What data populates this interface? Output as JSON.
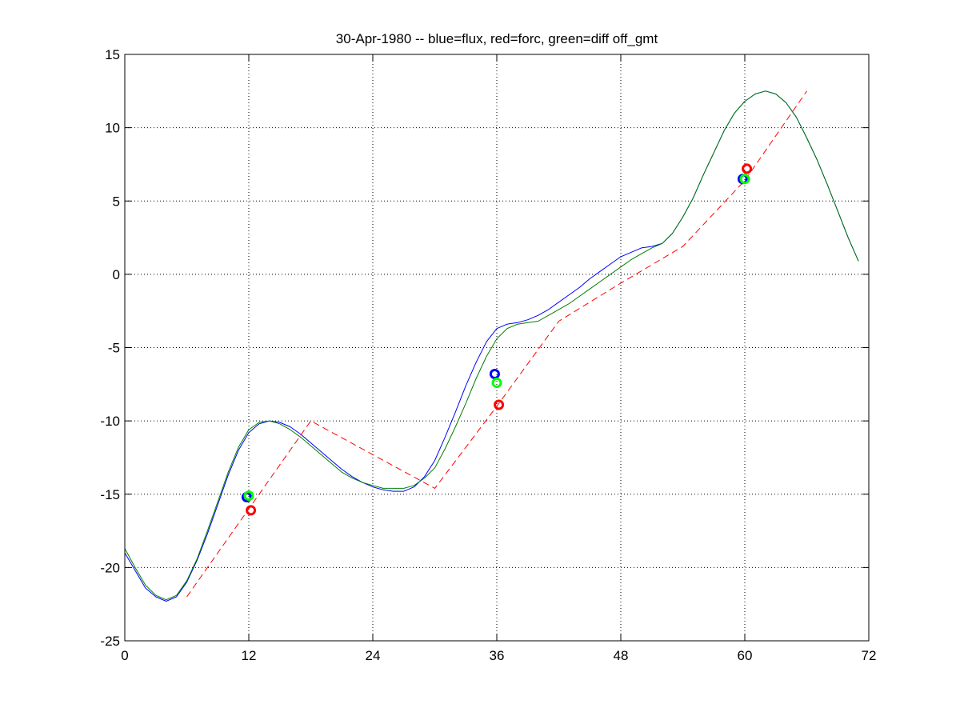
{
  "chart_data": {
    "type": "line",
    "title": "30-Apr-1980 -- blue=flux, red=forc, green=diff off_gmt",
    "xlabel": "",
    "ylabel": "",
    "xlim": [
      0,
      72
    ],
    "ylim": [
      -25,
      15
    ],
    "xticks": [
      0,
      12,
      24,
      36,
      48,
      60,
      72
    ],
    "xtick_labels": [
      "0",
      "12",
      "24",
      "36",
      "48",
      "60",
      "72"
    ],
    "yticks": [
      -25,
      -20,
      -15,
      -10,
      -5,
      0,
      5,
      10,
      15
    ],
    "ytick_labels": [
      "-25",
      "-20",
      "-15",
      "-10",
      "-5",
      "0",
      "5",
      "10",
      "15"
    ],
    "grid": true,
    "grid_style": "dotted",
    "legend": "none",
    "series": [
      {
        "color": "#0000ff",
        "style": "solid",
        "x": [
          0,
          1,
          2,
          3,
          4,
          5,
          6,
          7,
          8,
          9,
          10,
          11,
          12,
          13,
          14,
          15,
          16,
          17,
          18,
          19,
          20,
          21,
          22,
          23,
          24,
          25,
          26,
          27,
          28,
          29,
          30,
          31,
          32,
          33,
          34,
          35,
          36,
          37,
          38,
          39,
          40,
          41,
          42,
          43,
          44,
          45,
          46,
          47,
          48,
          49,
          50,
          51,
          52,
          53,
          54,
          55,
          56,
          57,
          58,
          59,
          60,
          61,
          62,
          63,
          64,
          65,
          66,
          67,
          68,
          69,
          70,
          71
        ],
        "y": [
          -19.0,
          -20.2,
          -21.4,
          -22.0,
          -22.3,
          -22.0,
          -21.0,
          -19.5,
          -17.7,
          -15.7,
          -13.7,
          -12.0,
          -10.8,
          -10.2,
          -10.0,
          -10.1,
          -10.4,
          -10.9,
          -11.5,
          -12.1,
          -12.7,
          -13.3,
          -13.8,
          -14.2,
          -14.5,
          -14.7,
          -14.8,
          -14.8,
          -14.5,
          -13.8,
          -12.7,
          -11.1,
          -9.4,
          -7.6,
          -6.0,
          -4.6,
          -3.7,
          -3.4,
          -3.3,
          -3.1,
          -2.8,
          -2.4,
          -1.9,
          -1.4,
          -0.9,
          -0.3,
          0.2,
          0.7,
          1.2,
          1.5,
          1.8,
          1.9,
          2.1,
          2.8,
          3.9,
          5.2,
          6.8,
          8.3,
          9.8,
          11.0,
          11.8,
          12.3,
          12.5,
          12.3,
          11.7,
          10.7,
          9.3,
          7.8,
          6.1,
          4.3,
          2.5,
          0.9
        ]
      },
      {
        "color": "#007f00",
        "style": "solid",
        "x": [
          0,
          1,
          2,
          3,
          4,
          5,
          6,
          7,
          8,
          9,
          10,
          11,
          12,
          13,
          14,
          15,
          16,
          17,
          18,
          19,
          20,
          21,
          22,
          23,
          24,
          25,
          26,
          27,
          28,
          29,
          30,
          31,
          32,
          33,
          34,
          35,
          36,
          37,
          38,
          39,
          40,
          41,
          42,
          43,
          44,
          45,
          46,
          47,
          48,
          49,
          50,
          51,
          52,
          53,
          54,
          55,
          56,
          57,
          58,
          59,
          60,
          61,
          62,
          63,
          64,
          65,
          66,
          67,
          68,
          69,
          70,
          71
        ],
        "y": [
          -18.7,
          -20.0,
          -21.2,
          -21.9,
          -22.2,
          -21.9,
          -20.9,
          -19.4,
          -17.5,
          -15.5,
          -13.5,
          -11.8,
          -10.6,
          -10.1,
          -10.0,
          -10.2,
          -10.6,
          -11.1,
          -11.7,
          -12.3,
          -12.9,
          -13.5,
          -13.9,
          -14.2,
          -14.4,
          -14.6,
          -14.6,
          -14.6,
          -14.4,
          -13.9,
          -13.2,
          -11.9,
          -10.4,
          -8.8,
          -7.1,
          -5.6,
          -4.4,
          -3.7,
          -3.4,
          -3.3,
          -3.2,
          -2.8,
          -2.4,
          -2.0,
          -1.5,
          -1.0,
          -0.5,
          0.0,
          0.5,
          1.0,
          1.4,
          1.8,
          2.1,
          2.8,
          3.9,
          5.2,
          6.8,
          8.3,
          9.8,
          11.0,
          11.8,
          12.3,
          12.5,
          12.3,
          11.7,
          10.7,
          9.3,
          7.8,
          6.1,
          4.3,
          2.5,
          0.9
        ]
      },
      {
        "color": "#ff0000",
        "style": "dashed",
        "x": [
          6,
          12,
          18,
          24,
          30,
          36,
          42,
          48,
          54,
          60,
          66
        ],
        "y": [
          -22.0,
          -16.0,
          -10.0,
          -12.3,
          -14.6,
          -9.0,
          -3.2,
          -0.6,
          1.9,
          6.4,
          12.5
        ]
      }
    ],
    "markers": [
      {
        "color": "#0000ff",
        "x": 11.8,
        "y": -15.2
      },
      {
        "color": "#00ff00",
        "x": 12.0,
        "y": -15.1
      },
      {
        "color": "#ff0000",
        "x": 12.2,
        "y": -16.1
      },
      {
        "color": "#0000ff",
        "x": 35.8,
        "y": -6.8
      },
      {
        "color": "#00ff00",
        "x": 36.0,
        "y": -7.4
      },
      {
        "color": "#ff0000",
        "x": 36.2,
        "y": -8.9
      },
      {
        "color": "#0000ff",
        "x": 59.8,
        "y": 6.5
      },
      {
        "color": "#00ff00",
        "x": 60.0,
        "y": 6.5
      },
      {
        "color": "#ff0000",
        "x": 60.2,
        "y": 7.2
      }
    ]
  }
}
